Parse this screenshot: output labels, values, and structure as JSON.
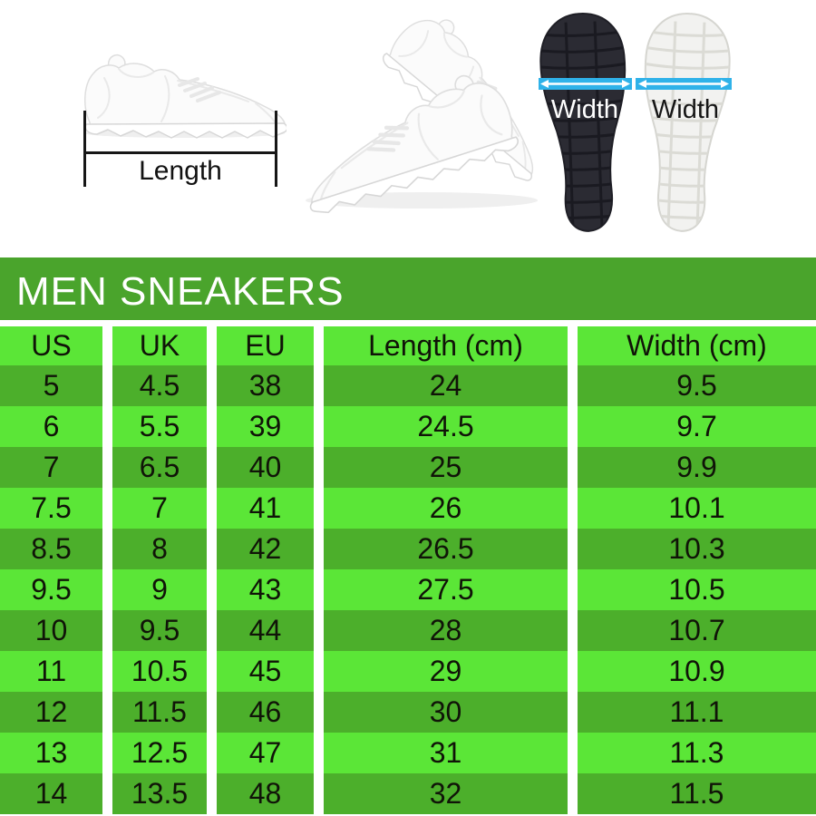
{
  "photos": {
    "side_shoe": {
      "length_label": "Length"
    },
    "soles": {
      "black_width_label": "Width",
      "white_width_label": "Width"
    }
  },
  "table": {
    "title": "MEN SNEAKERS",
    "columns": [
      "US",
      "UK",
      "EU",
      "Length (cm)",
      "Width (cm)"
    ],
    "rows": [
      [
        "5",
        "4.5",
        "38",
        "24",
        "9.5"
      ],
      [
        "6",
        "5.5",
        "39",
        "24.5",
        "9.7"
      ],
      [
        "7",
        "6.5",
        "40",
        "25",
        "9.9"
      ],
      [
        "7.5",
        "7",
        "41",
        "26",
        "10.1"
      ],
      [
        "8.5",
        "8",
        "42",
        "26.5",
        "10.3"
      ],
      [
        "9.5",
        "9",
        "43",
        "27.5",
        "10.5"
      ],
      [
        "10",
        "9.5",
        "44",
        "28",
        "10.7"
      ],
      [
        "11",
        "10.5",
        "45",
        "29",
        "10.9"
      ],
      [
        "12",
        "11.5",
        "46",
        "30",
        "11.1"
      ],
      [
        "13",
        "12.5",
        "47",
        "31",
        "11.3"
      ],
      [
        "14",
        "13.5",
        "48",
        "32",
        "11.5"
      ]
    ]
  },
  "colors": {
    "title_band_green": "#4AA42C",
    "row_dark_green": "#4CAF2B",
    "row_light_green": "#5BE637",
    "cell_text": "#101408",
    "title_text": "#FFFFFF",
    "arrow_band_cyan": "#2FB2E9",
    "sole_black": "#2B2B33",
    "sole_white": "#F2F2F0"
  }
}
